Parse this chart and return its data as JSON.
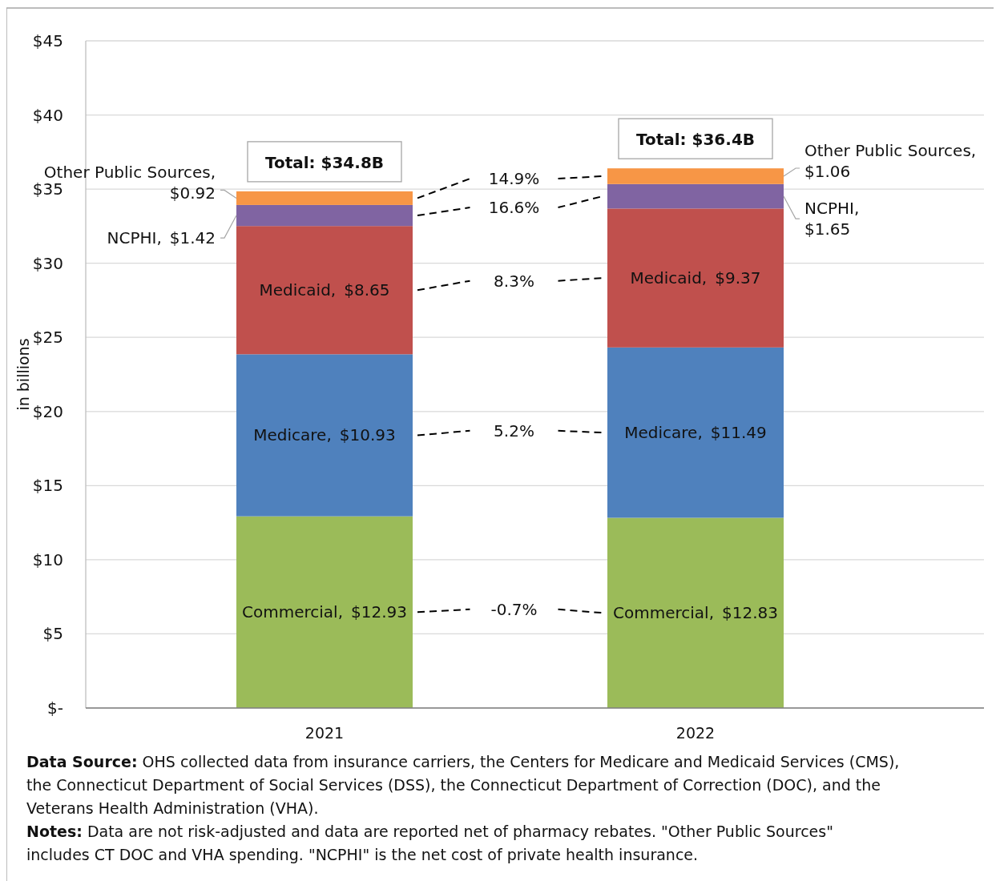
{
  "chart_data": {
    "type": "bar",
    "stacked": true,
    "categories": [
      "2021",
      "2022"
    ],
    "series": [
      {
        "name": "Commercial,",
        "color": "#9bbb59",
        "values": [
          12.93,
          12.83
        ],
        "value_labels": [
          "$12.93",
          "$12.83"
        ]
      },
      {
        "name": "Medicare,",
        "color": "#4f81bd",
        "values": [
          10.93,
          11.49
        ],
        "value_labels": [
          "$10.93",
          "$11.49"
        ]
      },
      {
        "name": "Medicaid,",
        "color": "#c0504d",
        "values": [
          8.65,
          9.37
        ],
        "value_labels": [
          "$8.65",
          "$9.37"
        ]
      },
      {
        "name": "NCPHI,",
        "color": "#8064a2",
        "values": [
          1.42,
          1.65
        ],
        "value_labels": [
          "$1.42",
          "$1.65"
        ]
      },
      {
        "name": "Other Public Sources,",
        "color": "#f79646",
        "values": [
          0.92,
          1.06
        ],
        "value_labels": [
          "$0.92",
          "$1.06"
        ]
      }
    ],
    "totals": [
      "Total: $34.8B",
      "Total: $36.4B"
    ],
    "ylabel": "in billions",
    "ylim": [
      0,
      45
    ],
    "yticks": [
      {
        "value": 0,
        "label": "$-"
      },
      {
        "value": 5,
        "label": "$5"
      },
      {
        "value": 10,
        "label": "$10"
      },
      {
        "value": 15,
        "label": "$15"
      },
      {
        "value": 20,
        "label": "$20"
      },
      {
        "value": 25,
        "label": "$25"
      },
      {
        "value": 30,
        "label": "$30"
      },
      {
        "value": 35,
        "label": "$35"
      },
      {
        "value": 40,
        "label": "$40"
      },
      {
        "value": 45,
        "label": "$45"
      }
    ],
    "grid": "y",
    "legend": false,
    "annotations": [
      "-0.7%",
      "5.2%",
      "8.3%",
      "16.6%",
      "14.9%",
      "Data Source: OHS collected data from insurance carriers, the Centers for Medicare and Medicaid Services (CMS), the Connecticut Department of Social Services (DSS), the Connecticut Department of Correction (DOC), and the Veterans Health Administration (VHA).",
      "Notes: Data are not risk-adjusted and data are reported net of pharmacy rebates. \"Other Public Sources\" includes CT DOC and VHA spending. \"NCPHI\" is the net cost of private health insurance."
    ]
  }
}
